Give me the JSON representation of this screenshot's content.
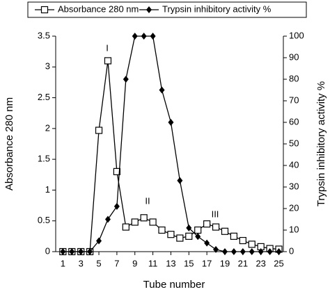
{
  "chart_data": {
    "type": "line",
    "x_label": "Tube number",
    "y_label": "Absorbance 280 nm",
    "y2_label": "Trypsin inhibitory activity %",
    "x": [
      1,
      2,
      3,
      4,
      5,
      6,
      7,
      8,
      9,
      10,
      11,
      12,
      13,
      14,
      15,
      16,
      17,
      18,
      19,
      20,
      21,
      22,
      23,
      24,
      25
    ],
    "series": [
      {
        "name": "Absorbance 280 nm",
        "color": "#000000",
        "marker": "square",
        "axis": "y",
        "values": [
          0,
          0,
          0,
          0,
          1.97,
          3.1,
          1.3,
          0.4,
          0.48,
          0.55,
          0.48,
          0.35,
          0.28,
          0.22,
          0.25,
          0.35,
          0.45,
          0.4,
          0.33,
          0.25,
          0.18,
          0.12,
          0.08,
          0.05,
          0.04
        ]
      },
      {
        "name": "Trypsin inhibitory activity %",
        "color": "#000000",
        "marker": "diamond",
        "axis": "y2",
        "values": [
          0,
          0,
          0,
          0,
          5,
          15,
          21,
          80,
          100,
          100,
          100,
          75,
          60,
          33,
          11,
          7,
          4,
          1,
          0,
          0,
          0,
          0,
          0,
          0,
          0
        ]
      }
    ],
    "annotations": [
      "I",
      "II",
      "III"
    ],
    "xlim": [
      0.2,
      25.5
    ],
    "xticks": [
      1,
      3,
      5,
      7,
      9,
      11,
      13,
      15,
      17,
      19,
      21,
      23,
      25
    ],
    "ylim": [
      0,
      3.5
    ],
    "yticks": [
      0,
      0.5,
      1,
      1.5,
      2,
      2.5,
      3,
      3.5
    ],
    "y2lim": [
      0,
      100
    ],
    "y2ticks": [
      0,
      10,
      20,
      30,
      40,
      50,
      60,
      70,
      80,
      90,
      100
    ]
  }
}
